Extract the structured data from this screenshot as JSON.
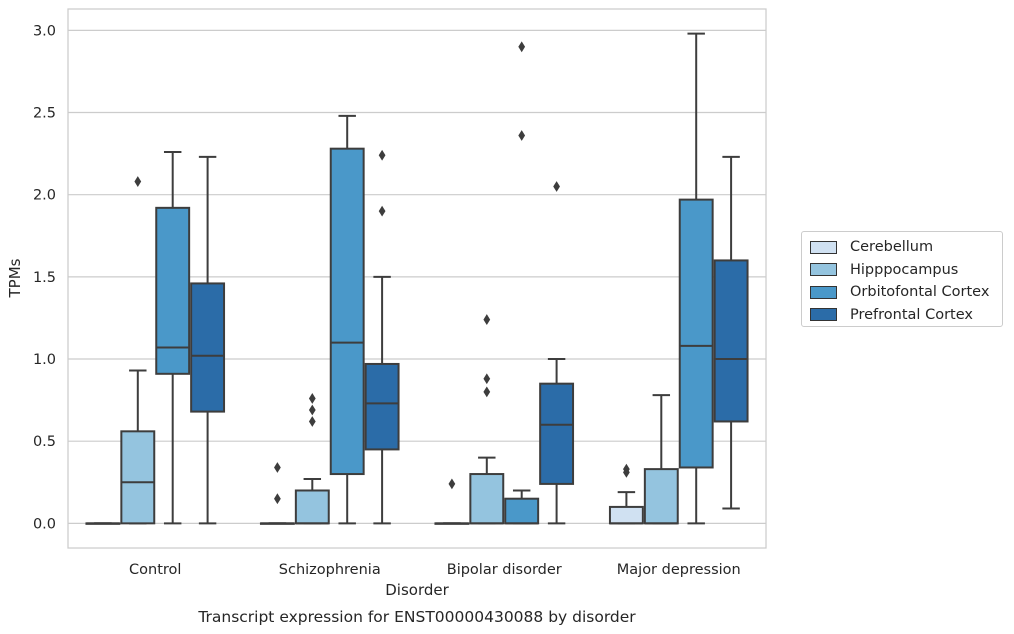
{
  "chart_data": {
    "type": "box",
    "title": "Transcript expression for ENST00000430088 by disorder",
    "xlabel": "Disorder",
    "ylabel": "TPMs",
    "ylim": [
      -0.15,
      3.13
    ],
    "yticks": [
      "0.0",
      "0.5",
      "1.0",
      "1.5",
      "2.0",
      "2.5",
      "3.0"
    ],
    "grid": "horizontal",
    "legend_position": "right",
    "categories": [
      "Control",
      "Schizophrenia",
      "Bipolar disorder",
      "Major depression"
    ],
    "series": [
      {
        "name": "Cerebellum",
        "color": "#d0e1f2",
        "boxes": [
          {
            "whislo": 0,
            "q1": 0,
            "med": 0,
            "q3": 0,
            "whishi": 0,
            "fliers": []
          },
          {
            "whislo": 0,
            "q1": 0,
            "med": 0,
            "q3": 0,
            "whishi": 0,
            "fliers": [
              0.15,
              0.34
            ]
          },
          {
            "whislo": 0,
            "q1": 0,
            "med": 0,
            "q3": 0,
            "whishi": 0,
            "fliers": [
              0.24
            ]
          },
          {
            "whislo": 0,
            "q1": 0,
            "med": 0,
            "q3": 0.1,
            "whishi": 0.19,
            "fliers": [
              0.31,
              0.33
            ]
          }
        ]
      },
      {
        "name": "Hipppocampus",
        "color": "#94c4df",
        "boxes": [
          {
            "whislo": 0,
            "q1": 0,
            "med": 0.25,
            "q3": 0.56,
            "whishi": 0.93,
            "fliers": [
              2.08
            ]
          },
          {
            "whislo": 0,
            "q1": 0,
            "med": 0,
            "q3": 0.2,
            "whishi": 0.27,
            "fliers": [
              0.62,
              0.69,
              0.76
            ]
          },
          {
            "whislo": 0,
            "q1": 0,
            "med": 0,
            "q3": 0.3,
            "whishi": 0.4,
            "fliers": [
              0.8,
              0.88,
              1.24
            ]
          },
          {
            "whislo": 0,
            "q1": 0,
            "med": 0,
            "q3": 0.33,
            "whishi": 0.78,
            "fliers": []
          }
        ]
      },
      {
        "name": "Orbitofontal Cortex",
        "color": "#4a98c9",
        "boxes": [
          {
            "whislo": 0,
            "q1": 0.91,
            "med": 1.07,
            "q3": 1.92,
            "whishi": 2.26,
            "fliers": []
          },
          {
            "whislo": 0,
            "q1": 0.3,
            "med": 1.1,
            "q3": 2.28,
            "whishi": 2.48,
            "fliers": []
          },
          {
            "whislo": 0,
            "q1": 0,
            "med": 0,
            "q3": 0.15,
            "whishi": 0.2,
            "fliers": [
              2.36,
              2.9
            ]
          },
          {
            "whislo": 0,
            "q1": 0.34,
            "med": 1.08,
            "q3": 1.97,
            "whishi": 2.98,
            "fliers": []
          }
        ]
      },
      {
        "name": "Prefrontal Cortex",
        "color": "#2b6ca8",
        "boxes": [
          {
            "whislo": 0,
            "q1": 0.68,
            "med": 1.02,
            "q3": 1.46,
            "whishi": 2.23,
            "fliers": []
          },
          {
            "whislo": 0,
            "q1": 0.45,
            "med": 0.73,
            "q3": 0.97,
            "whishi": 1.5,
            "fliers": [
              1.9,
              2.24
            ]
          },
          {
            "whislo": 0,
            "q1": 0.24,
            "med": 0.6,
            "q3": 0.85,
            "whishi": 1.0,
            "fliers": [
              2.05
            ]
          },
          {
            "whislo": 0.09,
            "q1": 0.62,
            "med": 1.0,
            "q3": 1.6,
            "whishi": 2.23,
            "fliers": []
          }
        ]
      }
    ]
  }
}
